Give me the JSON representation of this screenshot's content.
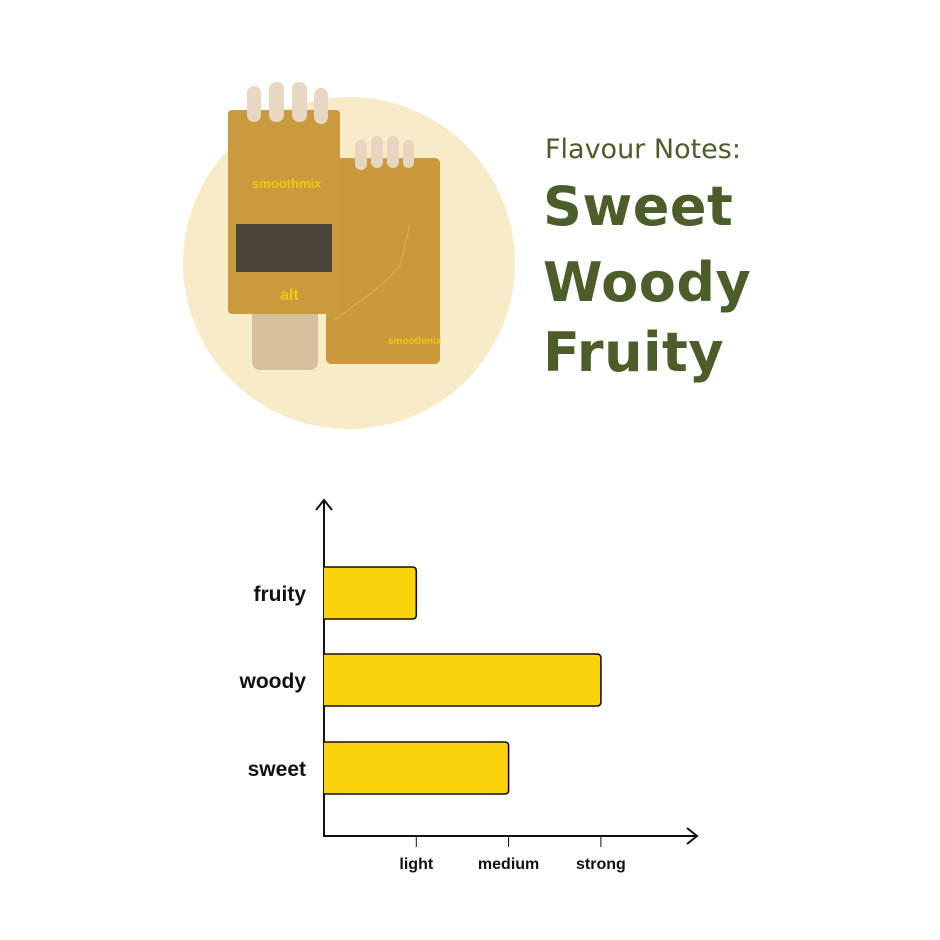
{
  "heading": {
    "label": "Flavour Notes:",
    "notes": [
      "Sweet",
      "Woody",
      "Fruity"
    ],
    "color": "#4b5e2a"
  },
  "product": {
    "brand": "smoothmix",
    "variant": "alt",
    "backdrop_color": "#f8ecc8",
    "pouch_color": "#c89a3e"
  },
  "chart_data": {
    "type": "bar",
    "orientation": "horizontal",
    "categories": [
      "fruity",
      "woody",
      "sweet"
    ],
    "values": [
      1,
      3,
      2
    ],
    "x_ticks": [
      "light",
      "medium",
      "strong"
    ],
    "xlim": [
      0,
      4
    ],
    "grid": false,
    "bar_color": "#fbd30a",
    "title": "",
    "xlabel": "",
    "ylabel": ""
  }
}
